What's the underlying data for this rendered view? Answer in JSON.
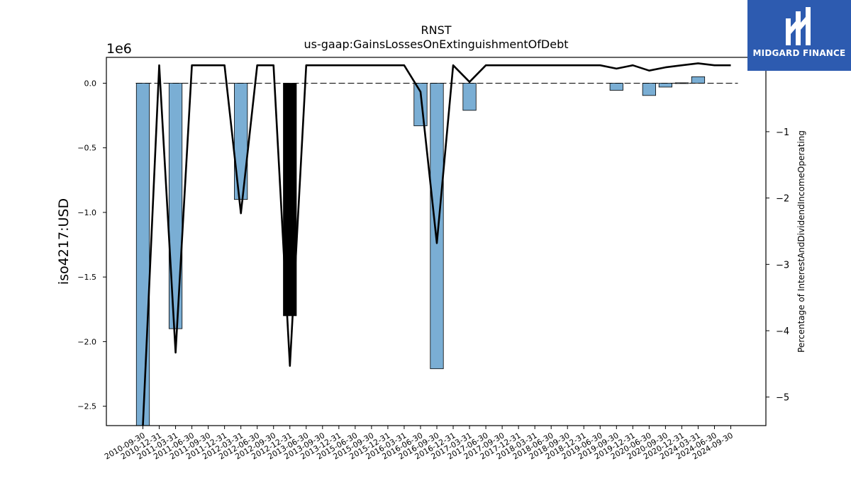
{
  "chart_data": {
    "type": "bar",
    "title": "RNST",
    "subtitle": "us-gaap:GainsLossesOnExtinguishmentOfDebt",
    "ylabel": "iso4217:USD",
    "y_offset_label": "1e6",
    "y2label": "Percentage of InterestAndDividendIncomeOperating",
    "ylim": [
      -2.65,
      0.2
    ],
    "y2lim": [
      -5.43,
      0.12
    ],
    "yticks": [
      0.0,
      -0.5,
      -1.0,
      -1.5,
      -2.0,
      -2.5
    ],
    "ytick_labels": [
      "0.0",
      "−0.5",
      "−1.0",
      "−1.5",
      "−2.0",
      "−2.5"
    ],
    "y2ticks": [
      0,
      -1,
      -2,
      -3,
      -4,
      -5
    ],
    "y2tick_labels": [
      "0",
      "−1",
      "−2",
      "−3",
      "−4",
      "−5"
    ],
    "categories": [
      "2010-09-30",
      "2010-12-31",
      "2011-03-31",
      "2011-06-30",
      "2011-09-30",
      "2011-12-31",
      "2012-03-31",
      "2012-06-30",
      "2012-09-30",
      "2012-12-31",
      "2013-06-30",
      "2013-09-30",
      "2013-12-31",
      "2015-06-30",
      "2015-09-30",
      "2015-12-31",
      "2016-03-31",
      "2016-06-30",
      "2016-09-30",
      "2016-12-31",
      "2017-03-31",
      "2017-06-30",
      "2017-09-30",
      "2017-12-31",
      "2018-03-31",
      "2018-06-30",
      "2018-09-30",
      "2018-12-31",
      "2019-06-30",
      "2019-09-30",
      "2019-12-31",
      "2020-06-30",
      "2020-09-30",
      "2020-12-31",
      "2024-03-31",
      "2024-06-30",
      "2024-09-30"
    ],
    "series": [
      {
        "kind": "bar",
        "unit": "USD (1e6)",
        "values": [
          -2.65,
          0,
          -1.9,
          0,
          0,
          0,
          -0.9,
          0,
          0,
          -1.8,
          0,
          0,
          0,
          0,
          0,
          0,
          0,
          -0.33,
          -2.21,
          0,
          -0.21,
          0,
          0,
          0,
          0,
          0,
          0,
          0,
          0,
          -0.055,
          0,
          -0.095,
          -0.03,
          0.003,
          0.05,
          0,
          0
        ],
        "highlight_index": 9
      },
      {
        "kind": "line",
        "unit": "percent",
        "values": [
          -5.43,
          0.0,
          -4.33,
          0.0,
          0.0,
          0.0,
          -2.23,
          0.0,
          0.0,
          -4.53,
          0.0,
          0.0,
          0.0,
          0.0,
          0.0,
          0.0,
          0.0,
          -0.4,
          -2.68,
          0.0,
          -0.25,
          0.0,
          0.0,
          0.0,
          0.0,
          0.0,
          0.0,
          0.0,
          0.0,
          -0.05,
          0.0,
          -0.08,
          -0.03,
          0.0,
          0.03,
          0.0,
          0.0
        ]
      }
    ],
    "zero_line": "dashed",
    "grid": false,
    "colors": {
      "bar": "#7aaed4",
      "bar_highlight": "#000000",
      "bar_edge": "#000000",
      "line": "#000000"
    }
  },
  "logo": {
    "text": "MIDGARD FINANCE",
    "background": "#2d5bb0"
  }
}
